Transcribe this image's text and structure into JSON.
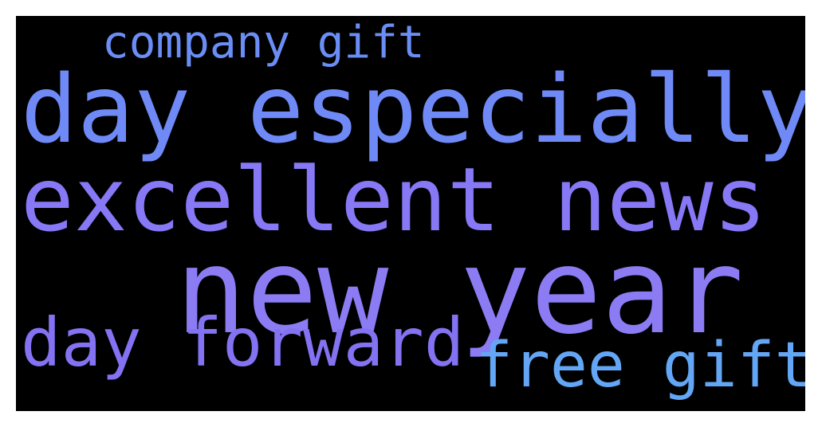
{
  "background_color": "#000000",
  "words": [
    {
      "id": "company-gift",
      "text": "company gift",
      "color": "#6a8ef5"
    },
    {
      "id": "day-especially",
      "text": "day especially",
      "color": "#6f8af6"
    },
    {
      "id": "excellent-news",
      "text": "excellent news",
      "color": "#8778f5"
    },
    {
      "id": "new-year",
      "text": "new year",
      "color": "#8c7cf4"
    },
    {
      "id": "day-forward",
      "text": "day forward",
      "color": "#8373f2"
    },
    {
      "id": "free-gift",
      "text": "free gift",
      "color": "#63a6f5"
    }
  ]
}
